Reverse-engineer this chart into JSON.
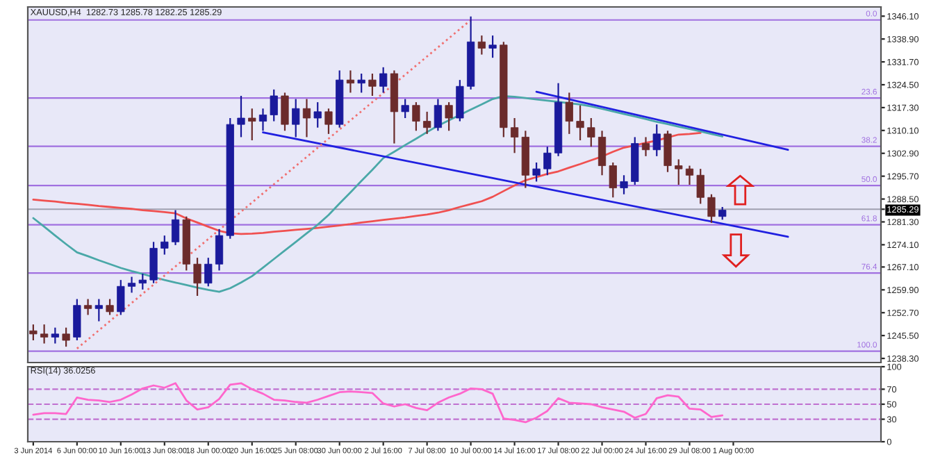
{
  "chart_data": [
    {
      "type": "candlestick",
      "title": "XAUUSD,H4  1282.73 1285.78 1282.25 1285.29",
      "tick_labels": "y",
      "categories": [
        null,
        null,
        null,
        null,
        null,
        null,
        null,
        null,
        null,
        null,
        null,
        null,
        null,
        null,
        null,
        null,
        null,
        null,
        null,
        null,
        null,
        null,
        null,
        null,
        null,
        null,
        null,
        null,
        null,
        null,
        null,
        null,
        null,
        null,
        null,
        null,
        null,
        null,
        null,
        null,
        null,
        null,
        null,
        null,
        null,
        null,
        null,
        null,
        null,
        null,
        null,
        null,
        null,
        null,
        null,
        null,
        null,
        null,
        null,
        null,
        null,
        null,
        null,
        null,
        null,
        null,
        null,
        null,
        null,
        null,
        null,
        null,
        null,
        null,
        null,
        null,
        null,
        null
      ],
      "ylim": [
        1237,
        1349
      ],
      "yticks": [
        {
          "value": 1346.1,
          "label": "1346.10"
        },
        {
          "value": 1338.9,
          "label": "1338.90"
        },
        {
          "value": 1331.7,
          "label": "1331.70"
        },
        {
          "value": 1324.5,
          "label": "1324.50"
        },
        {
          "value": 1317.3,
          "label": "1317.30"
        },
        {
          "value": 1310.1,
          "label": "1310.10"
        },
        {
          "value": 1302.9,
          "label": "1302.90"
        },
        {
          "value": 1295.7,
          "label": "1295.70"
        },
        {
          "value": 1288.5,
          "label": "1288.50"
        },
        {
          "value": 1285.29,
          "label": "1285.29"
        },
        {
          "value": 1281.3,
          "label": "1281.30"
        },
        {
          "value": 1274.1,
          "label": "1274.10"
        },
        {
          "value": 1267.1,
          "label": "1267.10"
        },
        {
          "value": 1259.9,
          "label": "1259.90"
        },
        {
          "value": 1252.7,
          "label": "1252.70"
        },
        {
          "value": 1245.5,
          "label": "1245.50"
        },
        {
          "value": 1238.3,
          "label": "1238.30"
        }
      ],
      "ohlc": [
        [
          1247,
          1249,
          1244,
          1246
        ],
        [
          1246,
          1249,
          1243,
          1245
        ],
        [
          1245,
          1248,
          1243,
          1246
        ],
        [
          1246,
          1248,
          1242,
          1244
        ],
        [
          1245,
          1257,
          1244,
          1255
        ],
        [
          1255,
          1257,
          1252,
          1254
        ],
        [
          1254,
          1257,
          1250,
          1255
        ],
        [
          1255,
          1257,
          1252,
          1253
        ],
        [
          1253,
          1263,
          1252,
          1261
        ],
        [
          1261,
          1264,
          1259,
          1262
        ],
        [
          1262,
          1265,
          1260,
          1263
        ],
        [
          1263,
          1275,
          1262,
          1273
        ],
        [
          1273,
          1277,
          1271,
          1275
        ],
        [
          1275,
          1285,
          1274,
          1282
        ],
        [
          1282,
          1283,
          1266,
          1268
        ],
        [
          1268,
          1270,
          1258,
          1262
        ],
        [
          1262,
          1270,
          1261,
          1268
        ],
        [
          1268,
          1279,
          1266,
          1277
        ],
        [
          1277,
          1314,
          1276,
          1312
        ],
        [
          1312,
          1321,
          1308,
          1314
        ],
        [
          1314,
          1317,
          1307,
          1313
        ],
        [
          1313,
          1317,
          1310,
          1315
        ],
        [
          1315,
          1323,
          1313,
          1321
        ],
        [
          1321,
          1322,
          1310,
          1312
        ],
        [
          1312,
          1320,
          1308,
          1317
        ],
        [
          1317,
          1320,
          1308,
          1314
        ],
        [
          1314,
          1319,
          1311,
          1316
        ],
        [
          1316,
          1317,
          1309,
          1312
        ],
        [
          1312,
          1329,
          1311,
          1326
        ],
        [
          1326,
          1329,
          1322,
          1325
        ],
        [
          1325,
          1328,
          1322,
          1326
        ],
        [
          1326,
          1328,
          1321,
          1324
        ],
        [
          1324,
          1330,
          1322,
          1328
        ],
        [
          1328,
          1329,
          1306,
          1316
        ],
        [
          1316,
          1320,
          1314,
          1318
        ],
        [
          1318,
          1319,
          1310,
          1313
        ],
        [
          1313,
          1316,
          1309,
          1311
        ],
        [
          1311,
          1320,
          1310,
          1318
        ],
        [
          1318,
          1319,
          1310,
          1314
        ],
        [
          1314,
          1326,
          1313,
          1324
        ],
        [
          1324,
          1346,
          1323,
          1338
        ],
        [
          1338,
          1340,
          1334,
          1336
        ],
        [
          1336,
          1340,
          1333,
          1337
        ],
        [
          1337,
          1338,
          1308,
          1311
        ],
        [
          1311,
          1314,
          1303,
          1308
        ],
        [
          1308,
          1310,
          1292,
          1296
        ],
        [
          1296,
          1300,
          1294,
          1298
        ],
        [
          1298,
          1305,
          1296,
          1303
        ],
        [
          1303,
          1325,
          1302,
          1319
        ],
        [
          1319,
          1322,
          1309,
          1313
        ],
        [
          1313,
          1318,
          1307,
          1311
        ],
        [
          1311,
          1314,
          1305,
          1308
        ],
        [
          1308,
          1310,
          1296,
          1299
        ],
        [
          1299,
          1300,
          1289,
          1292
        ],
        [
          1292,
          1296,
          1290,
          1294
        ],
        [
          1294,
          1308,
          1293,
          1306
        ],
        [
          1306,
          1308,
          1302,
          1304
        ],
        [
          1304,
          1312,
          1302,
          1309
        ],
        [
          1309,
          1310,
          1297,
          1299
        ],
        [
          1299,
          1301,
          1293,
          1298
        ],
        [
          1298,
          1299,
          1293,
          1296
        ],
        [
          1296,
          1298,
          1287,
          1289
        ],
        [
          1289,
          1290,
          1281,
          1283
        ],
        [
          1283,
          1286,
          1282,
          1285
        ],
        null,
        null,
        null,
        null,
        null,
        null,
        null,
        null,
        null,
        null,
        null,
        null,
        null,
        null
      ],
      "colors": [
        "#6b2b2b",
        "#6b2b2b",
        "#1a1a9c",
        "#6b2b2b",
        "#1a1a9c",
        "#6b2b2b",
        "#1a1a9c",
        "#6b2b2b",
        "#1a1a9c",
        "#1a1a9c",
        "#1a1a9c",
        "#1a1a9c",
        "#1a1a9c",
        "#1a1a9c",
        "#6b2b2b",
        "#6b2b2b",
        "#1a1a9c",
        "#1a1a9c",
        "#1a1a9c",
        "#1a1a9c",
        "#6b2b2b",
        "#1a1a9c",
        "#1a1a9c",
        "#6b2b2b",
        "#1a1a9c",
        "#6b2b2b",
        "#1a1a9c",
        "#6b2b2b",
        "#1a1a9c",
        "#6b2b2b",
        "#1a1a9c",
        "#6b2b2b",
        "#1a1a9c",
        "#6b2b2b",
        "#1a1a9c",
        "#6b2b2b",
        "#6b2b2b",
        "#1a1a9c",
        "#6b2b2b",
        "#1a1a9c",
        "#1a1a9c",
        "#6b2b2b",
        "#1a1a9c",
        "#6b2b2b",
        "#6b2b2b",
        "#6b2b2b",
        "#1a1a9c",
        "#1a1a9c",
        "#1a1a9c",
        "#6b2b2b",
        "#6b2b2b",
        "#6b2b2b",
        "#6b2b2b",
        "#6b2b2b",
        "#1a1a9c",
        "#1a1a9c",
        "#6b2b2b",
        "#1a1a9c",
        "#6b2b2b",
        "#6b2b2b",
        "#6b2b2b",
        "#6b2b2b",
        "#6b2b2b",
        "#1a1a9c",
        null,
        null,
        null,
        null,
        null,
        null,
        null,
        null,
        null,
        null,
        null,
        null,
        null,
        null
      ],
      "series": [
        {
          "type": "line",
          "color": "#f05050",
          "values": [
            1288.3,
            1288.0,
            1287.7,
            1287.3,
            1287.0,
            1286.7,
            1286.3,
            1286.0,
            1285.7,
            1285.4,
            1285.0,
            1284.7,
            1284.4,
            1284.0,
            1282.4,
            1281.1,
            1279.8,
            1278.5,
            1277.7,
            1277.5,
            1277.6,
            1277.8,
            1278.2,
            1278.5,
            1278.8,
            1279.1,
            1279.4,
            1279.8,
            1280.2,
            1280.6,
            1281.1,
            1281.5,
            1281.9,
            1282.3,
            1282.7,
            1283.2,
            1283.6,
            1284.2,
            1285.0,
            1286.0,
            1286.9,
            1287.8,
            1289.2,
            1291.0,
            1292.8,
            1294.4,
            1295.4,
            1296.4,
            1297.2,
            1298.4,
            1299.5,
            1300.7,
            1301.9,
            1303.4,
            1304.7,
            1305.4,
            1306.2,
            1306.9,
            1307.9,
            1308.8,
            1309.0,
            1309.3,
            null,
            null,
            null,
            null,
            null,
            null,
            null,
            null,
            null,
            null,
            null,
            null,
            null,
            null,
            null,
            null
          ]
        },
        {
          "type": "line",
          "color": "#4aa8a8",
          "values": [
            1282.5,
            1279.8,
            1277.0,
            1274.3,
            1271.7,
            1270.5,
            1269.2,
            1268.0,
            1266.8,
            1265.8,
            1264.9,
            1263.9,
            1263.0,
            1262.2,
            1261.4,
            1260.6,
            1259.9,
            1259.3,
            1260.4,
            1262.2,
            1264.2,
            1266.9,
            1269.6,
            1272.3,
            1275.0,
            1277.7,
            1280.4,
            1283.5,
            1287.1,
            1290.6,
            1294.2,
            1297.7,
            1301.4,
            1303.4,
            1305.5,
            1307.5,
            1309.6,
            1311.6,
            1313.3,
            1315.0,
            1316.7,
            1318.3,
            1320.0,
            1320.9,
            1320.7,
            1320.3,
            1319.9,
            1319.5,
            1319.1,
            1318.7,
            1318.3,
            1317.7,
            1316.9,
            1316.1,
            1315.3,
            1314.5,
            1313.7,
            1312.8,
            1312.1,
            1311.3,
            1310.6,
            1309.8,
            1309.0,
            1308.2,
            null,
            null,
            null,
            null,
            null,
            null,
            null,
            null,
            null,
            null,
            null,
            null,
            null,
            null
          ]
        },
        {
          "type": "line",
          "color": "#2020e0",
          "values": [
            null,
            null,
            null,
            null,
            null,
            null,
            null,
            null,
            null,
            null,
            null,
            null,
            null,
            null,
            null,
            null,
            null,
            null,
            null,
            null,
            null,
            1309.5,
            null,
            null,
            null,
            null,
            null,
            null,
            null,
            null,
            null,
            null,
            null,
            null,
            null,
            null,
            null,
            null,
            null,
            null,
            null,
            null,
            null,
            null,
            null,
            null,
            null,
            null,
            null,
            null,
            null,
            null,
            null,
            null,
            null,
            null,
            null,
            null,
            null,
            null,
            null,
            null,
            null,
            null,
            null,
            null,
            null,
            null,
            null,
            1276.6,
            null,
            null,
            null,
            null,
            null,
            null,
            null,
            null
          ]
        },
        {
          "type": "line",
          "color": "#2020e0",
          "values": [
            null,
            null,
            null,
            null,
            null,
            null,
            null,
            null,
            null,
            null,
            null,
            null,
            null,
            null,
            null,
            null,
            null,
            null,
            null,
            null,
            null,
            null,
            null,
            null,
            null,
            null,
            null,
            null,
            null,
            null,
            null,
            null,
            null,
            null,
            null,
            null,
            null,
            null,
            null,
            null,
            null,
            null,
            null,
            null,
            null,
            null,
            1322.3,
            null,
            null,
            null,
            null,
            null,
            null,
            null,
            null,
            null,
            null,
            null,
            null,
            null,
            null,
            null,
            null,
            null,
            null,
            null,
            null,
            null,
            null,
            1304.0,
            null,
            null,
            null,
            null,
            null,
            null,
            null,
            null
          ]
        },
        {
          "type": "line",
          "color": "#f07070",
          "line_style": "dotted",
          "values": [
            null,
            null,
            null,
            null,
            1241.4,
            null,
            null,
            null,
            null,
            null,
            null,
            null,
            null,
            null,
            null,
            null,
            null,
            null,
            null,
            null,
            null,
            null,
            null,
            null,
            null,
            null,
            null,
            null,
            null,
            null,
            null,
            null,
            null,
            null,
            null,
            null,
            null,
            null,
            null,
            null,
            1344.9,
            null,
            null,
            null,
            null,
            null,
            null,
            null,
            null,
            null,
            null,
            null,
            null,
            null,
            null,
            null,
            null,
            null,
            null,
            null,
            null,
            null,
            null,
            null,
            null,
            null,
            null,
            null,
            null,
            null,
            null,
            null,
            null,
            null,
            null,
            null,
            null,
            null
          ]
        }
      ],
      "ref_lines": [
        {
          "axis": "y",
          "value": 1344.9,
          "color": "#a070e0"
        },
        {
          "axis": "y",
          "value": 1320.3,
          "color": "#a070e0"
        },
        {
          "axis": "y",
          "value": 1305.1,
          "color": "#a070e0"
        },
        {
          "axis": "y",
          "value": 1292.75,
          "color": "#a070e0"
        },
        {
          "axis": "y",
          "value": 1280.4,
          "color": "#a070e0"
        },
        {
          "axis": "y",
          "value": 1265.2,
          "color": "#a070e0"
        },
        {
          "axis": "y",
          "value": 1240.6,
          "color": "#a070e0"
        },
        {
          "axis": "y",
          "value": 1285.29,
          "color": "#a0a0b0"
        }
      ],
      "annotations": [
        {
          "text": "0.0",
          "y": 1344.9
        },
        {
          "text": "23.6",
          "y": 1320.3
        },
        {
          "text": "38.2",
          "y": 1305.1
        },
        {
          "text": "50.0",
          "y": 1292.75
        },
        {
          "text": "61.8",
          "y": 1280.4
        },
        {
          "text": "76.4",
          "y": 1265.2
        },
        {
          "text": "100.0",
          "y": 1240.6
        }
      ]
    },
    {
      "type": "line",
      "title": "RSI(14) 36.0256",
      "ylim": [
        0,
        100
      ],
      "yticks": [
        0,
        30,
        50,
        70,
        100
      ],
      "categories": [
        "3 Jun 2014",
        null,
        null,
        null,
        "6 Jun 00:00",
        null,
        null,
        null,
        "10 Jun 16:00",
        null,
        null,
        null,
        "13 Jun 08:00",
        null,
        null,
        null,
        "18 Jun 00:00",
        null,
        null,
        null,
        "20 Jun 16:00",
        null,
        null,
        null,
        "25 Jun 08:00",
        null,
        null,
        null,
        "30 Jun 00:00",
        null,
        null,
        null,
        "2 Jul 16:00",
        null,
        null,
        null,
        "7 Jul 08:00",
        null,
        null,
        null,
        "10 Jul 00:00",
        null,
        null,
        null,
        "14 Jul 16:00",
        null,
        null,
        null,
        "17 Jul 08:00",
        null,
        null,
        null,
        "22 Jul 00:00",
        null,
        null,
        null,
        "24 Jul 16:00",
        null,
        null,
        null,
        "29 Jul 08:00",
        null,
        null,
        null,
        "1 Aug 00:00",
        null,
        null,
        null,
        null,
        null,
        null,
        null,
        null,
        null,
        null,
        null,
        null,
        null
      ],
      "series": [
        {
          "color": "#ff66cc",
          "values": [
            36,
            38,
            38,
            37,
            59,
            56,
            55,
            53,
            56,
            63,
            71,
            75,
            72,
            78,
            55,
            43,
            46,
            57,
            76,
            78,
            70,
            64,
            56,
            55,
            53,
            52,
            56,
            61,
            66,
            67,
            66,
            65,
            51,
            47,
            50,
            45,
            42,
            52,
            59,
            64,
            71,
            70,
            64,
            31,
            29,
            26,
            32,
            41,
            58,
            52,
            51,
            50,
            46,
            43,
            40,
            32,
            37,
            58,
            62,
            60,
            44,
            43,
            33,
            35,
            null,
            null,
            null,
            null,
            null,
            null,
            null,
            null,
            null,
            null,
            null,
            null,
            null,
            null
          ]
        }
      ],
      "ref_lines": [
        {
          "axis": "y",
          "value": 70,
          "color": "#c070d0",
          "line_style": "dashed"
        },
        {
          "axis": "y",
          "value": 50,
          "color": "#c070d0",
          "line_style": "dashed"
        },
        {
          "axis": "y",
          "value": 30,
          "color": "#c070d0",
          "line_style": "dashed"
        }
      ]
    }
  ]
}
